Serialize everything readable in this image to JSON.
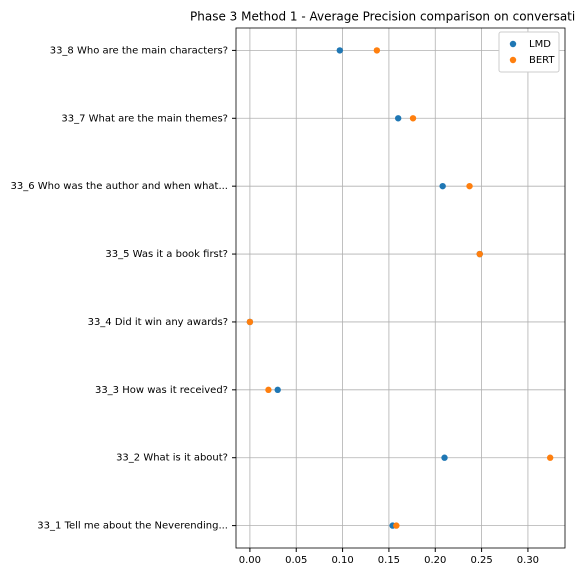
{
  "chart_data": {
    "type": "scatter",
    "orientation": "horizontal",
    "title": "Phase 3 Method 1 - Average Precision comparison on conversati",
    "categories": [
      "33_1 Tell me about the Neverending...",
      "33_2 What is it about?",
      "33_3 How was it received?",
      "33_4 Did it win any awards?",
      "33_5 Was it a book first?",
      "33_6 Who was the author and when what...",
      "33_7 What are the main themes?",
      "33_8 Who are the main characters?"
    ],
    "series": [
      {
        "name": "LMD",
        "color": "#1f77b4",
        "values": [
          0.154,
          0.21,
          0.03,
          0.0,
          0.248,
          0.208,
          0.16,
          0.097
        ]
      },
      {
        "name": "BERT",
        "color": "#ff7f0e",
        "values": [
          0.158,
          0.324,
          0.02,
          0.0,
          0.248,
          0.237,
          0.176,
          0.137
        ]
      }
    ],
    "xlim": [
      -0.015,
      0.34
    ],
    "xticks": [
      {
        "value": 0,
        "label": "0.00"
      },
      {
        "value": 0.05,
        "label": "0.05"
      },
      {
        "value": 0.1,
        "label": "0.10"
      },
      {
        "value": 0.15,
        "label": "0.15"
      },
      {
        "value": 0.2,
        "label": "0.20"
      },
      {
        "value": 0.25,
        "label": "0.25"
      },
      {
        "value": 0.3,
        "label": "0.30"
      }
    ],
    "grid": true,
    "legend": "upper right"
  }
}
